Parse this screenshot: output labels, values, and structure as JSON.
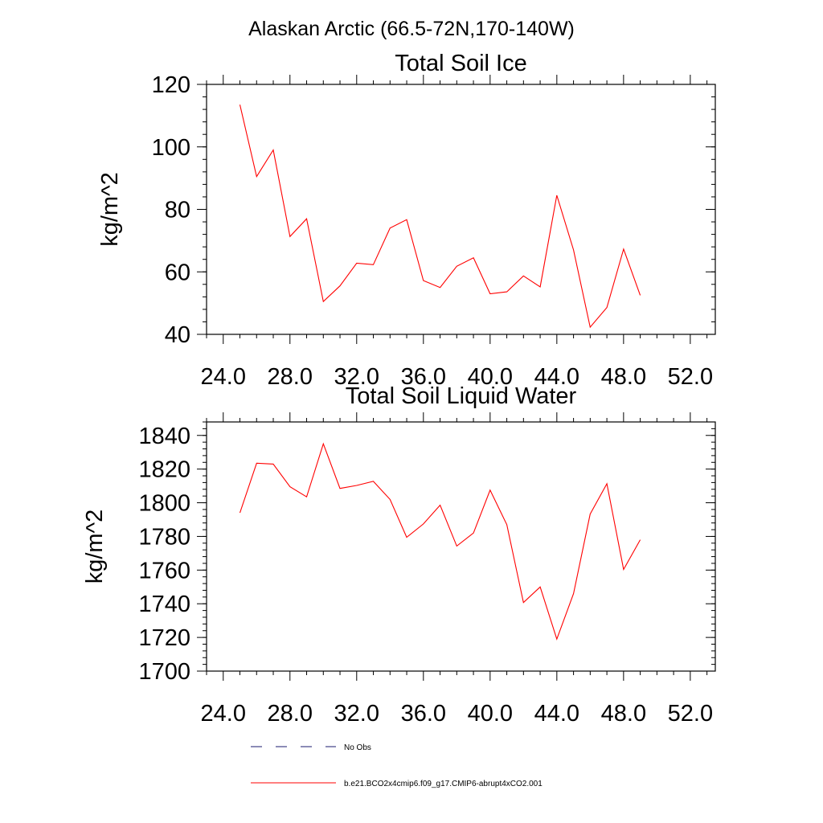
{
  "figure": {
    "title": "Alaskan Arctic (66.5-72N,170-140W)"
  },
  "colors": {
    "model_line": "#ff0000",
    "obs_line": "#1a1a6e",
    "axis": "#000000"
  },
  "legend": {
    "position": "bottom",
    "entries": [
      {
        "label": "No Obs",
        "style": "dashed",
        "color": "#1a1a6e"
      },
      {
        "label": "b.e21.BCO2x4cmip6.f09_g17.CMIP6-abrupt4xCO2.001",
        "style": "solid",
        "color": "#ff0000"
      }
    ]
  },
  "chart_data": [
    {
      "type": "line",
      "title": "Total Soil Ice",
      "xlabel": "",
      "ylabel": "kg/m^2",
      "xlim": [
        23.0,
        53.5
      ],
      "ylim": [
        40,
        120
      ],
      "x_ticks": [
        24,
        28,
        32,
        36,
        40,
        44,
        48,
        52
      ],
      "x_tick_labels": [
        "24.0",
        "28.0",
        "32.0",
        "36.0",
        "40.0",
        "44.0",
        "48.0",
        "52.0"
      ],
      "y_ticks": [
        40,
        60,
        80,
        100,
        120
      ],
      "y_tick_labels": [
        "40",
        "60",
        "80",
        "100",
        "120"
      ],
      "grid": false,
      "series": [
        {
          "name": "b.e21.BCO2x4cmip6.f09_g17.CMIP6-abrupt4xCO2.001",
          "color": "#ff0000",
          "x": [
            25,
            26,
            27,
            28,
            29,
            30,
            31,
            32,
            33,
            34,
            35,
            36,
            37,
            38,
            39,
            40,
            41,
            42,
            43,
            44,
            45,
            46,
            47,
            48,
            49
          ],
          "y": [
            113.5,
            90.5,
            99.0,
            71.3,
            77.0,
            50.5,
            55.5,
            62.8,
            62.3,
            74.0,
            76.7,
            57.2,
            55.0,
            61.8,
            64.5,
            53.0,
            53.6,
            58.7,
            55.2,
            84.5,
            67.0,
            42.3,
            48.6,
            67.3,
            52.5
          ]
        }
      ]
    },
    {
      "type": "line",
      "title": "Total Soil Liquid Water",
      "xlabel": "",
      "ylabel": "kg/m^2",
      "xlim": [
        23.0,
        53.5
      ],
      "ylim": [
        1700,
        1848
      ],
      "x_ticks": [
        24,
        28,
        32,
        36,
        40,
        44,
        48,
        52
      ],
      "x_tick_labels": [
        "24.0",
        "28.0",
        "32.0",
        "36.0",
        "40.0",
        "44.0",
        "48.0",
        "52.0"
      ],
      "y_ticks": [
        1700,
        1720,
        1740,
        1760,
        1780,
        1800,
        1820,
        1840
      ],
      "y_tick_labels": [
        "1700",
        "1720",
        "1740",
        "1760",
        "1780",
        "1800",
        "1820",
        "1840"
      ],
      "grid": false,
      "series": [
        {
          "name": "b.e21.BCO2x4cmip6.f09_g17.CMIP6-abrupt4xCO2.001",
          "color": "#ff0000",
          "x": [
            25,
            26,
            27,
            28,
            29,
            30,
            31,
            32,
            33,
            34,
            35,
            36,
            37,
            38,
            39,
            40,
            41,
            42,
            43,
            44,
            45,
            46,
            47,
            48,
            49
          ],
          "y": [
            1794.0,
            1823.5,
            1823.0,
            1809.5,
            1803.5,
            1835.0,
            1808.5,
            1810.3,
            1812.7,
            1802.0,
            1779.5,
            1787.4,
            1798.6,
            1774.3,
            1782.0,
            1807.5,
            1787.0,
            1740.7,
            1750.0,
            1719.0,
            1746.0,
            1793.3,
            1811.3,
            1760.4,
            1778.0
          ]
        }
      ]
    }
  ]
}
